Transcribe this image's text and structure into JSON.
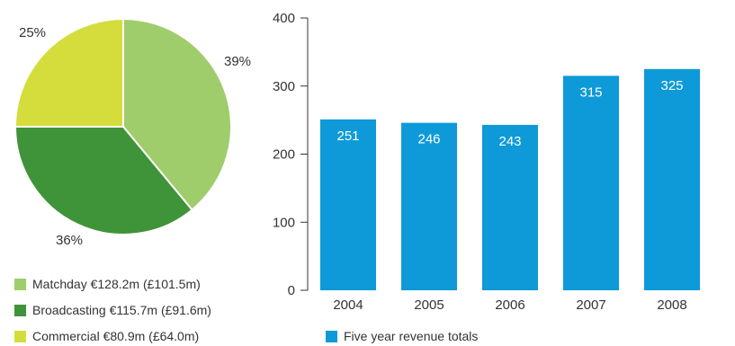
{
  "chart_data": [
    {
      "type": "pie",
      "slices": [
        {
          "label": "Matchday €128.2m (£101.5m)",
          "value": 39,
          "value_label": "39%",
          "color": "#9fcd6b"
        },
        {
          "label": "Broadcasting €115.7m (£91.6m)",
          "value": 36,
          "value_label": "36%",
          "color": "#3f9338"
        },
        {
          "label": "Commercial €80.9m (£64.0m)",
          "value": 25,
          "value_label": "25%",
          "color": "#d4dd3c"
        }
      ],
      "legend_placement": "bottom"
    },
    {
      "type": "bar",
      "categories": [
        "2004",
        "2005",
        "2006",
        "2007",
        "2008"
      ],
      "values": [
        251,
        246,
        243,
        315,
        325
      ],
      "data_labels": [
        "251",
        "246",
        "243",
        "315",
        "325"
      ],
      "yticks": [
        "0",
        "100",
        "200",
        "300",
        "400"
      ],
      "ylim": [
        0,
        400
      ],
      "grid": false,
      "bar_color": "#0e9ad8",
      "legend": "Five year revenue totals",
      "legend_placement": "bottom"
    }
  ]
}
